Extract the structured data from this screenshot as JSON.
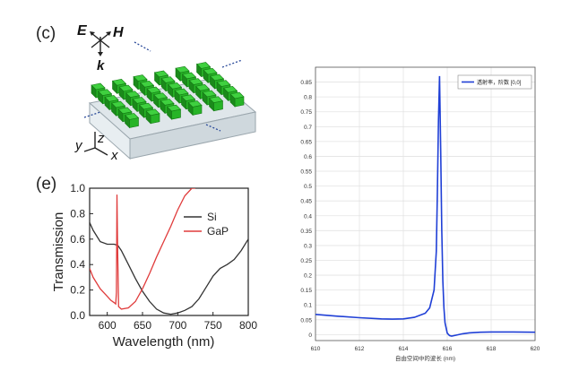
{
  "panel_c": {
    "label": "(c)",
    "axis_labels": {
      "E": "E",
      "H": "H",
      "k": "k",
      "x": "x",
      "y": "y",
      "z": "z"
    },
    "colors": {
      "pillar": "#27b427",
      "pillar_dark": "#1b8a1b",
      "substrate": "#dfe6ea"
    }
  },
  "panel_e": {
    "label": "(e)"
  },
  "chart_data": [
    {
      "type": "line",
      "title": "",
      "xlabel": "Wavelength (nm​)",
      "ylabel": "Transmission",
      "xlim": [
        575,
        800
      ],
      "ylim": [
        0,
        1.0
      ],
      "xticks": [
        "600",
        "650",
        "700",
        "750",
        "800"
      ],
      "yticks": [
        "0.0",
        "0.2",
        "0.4",
        "0.6",
        "0.8",
        "1.0"
      ],
      "legend_position": "top-right",
      "grid": false,
      "series": [
        {
          "name": "Si",
          "color": "#333333",
          "x": [
            575,
            580,
            590,
            600,
            605,
            610,
            615,
            620,
            630,
            640,
            650,
            660,
            670,
            680,
            690,
            700,
            710,
            720,
            730,
            740,
            750,
            760,
            770,
            780,
            790,
            800
          ],
          "y": [
            0.73,
            0.67,
            0.58,
            0.56,
            0.56,
            0.56,
            0.55,
            0.51,
            0.4,
            0.29,
            0.19,
            0.11,
            0.05,
            0.02,
            0.01,
            0.02,
            0.04,
            0.07,
            0.13,
            0.22,
            0.31,
            0.37,
            0.4,
            0.44,
            0.51,
            0.6
          ]
        },
        {
          "name": "GaP",
          "color": "#e03c3c",
          "x": [
            575,
            580,
            590,
            600,
            605,
            610,
            612,
            613,
            613.8,
            614.5,
            616,
            620,
            630,
            640,
            650,
            660,
            670,
            680,
            690,
            700,
            710,
            720,
            725
          ],
          "y": [
            0.37,
            0.3,
            0.21,
            0.15,
            0.12,
            0.1,
            0.09,
            0.18,
            0.95,
            0.6,
            0.07,
            0.05,
            0.06,
            0.11,
            0.21,
            0.33,
            0.46,
            0.58,
            0.7,
            0.83,
            0.94,
            1.0,
            1.0
          ]
        }
      ]
    },
    {
      "type": "line",
      "title": "",
      "xlabel": "自由空间中的波长 (nm)",
      "ylabel": "",
      "xlim": [
        610,
        620
      ],
      "ylim": [
        -0.02,
        0.9
      ],
      "xticks": [
        "610",
        "612",
        "614",
        "616",
        "618",
        "620"
      ],
      "yticks": [
        "0",
        "0.05",
        "0.1",
        "0.15",
        "0.2",
        "0.25",
        "0.3",
        "0.35",
        "0.4",
        "0.45",
        "0.5",
        "0.55",
        "0.6",
        "0.65",
        "0.7",
        "0.75",
        "0.8",
        "0.85"
      ],
      "legend_position": "top-right",
      "grid": true,
      "series": [
        {
          "name": "透射率，阶数 [0,0]",
          "color": "#1f3fd6",
          "x": [
            610,
            611,
            612,
            613,
            613.5,
            614,
            614.5,
            615,
            615.2,
            615.4,
            615.5,
            615.55,
            615.6,
            615.65,
            615.7,
            615.75,
            615.8,
            615.85,
            615.9,
            616,
            616.1,
            616.2,
            616.4,
            616.7,
            617,
            617.5,
            618,
            619,
            620
          ],
          "y": [
            0.068,
            0.062,
            0.057,
            0.053,
            0.052,
            0.053,
            0.058,
            0.072,
            0.09,
            0.15,
            0.28,
            0.48,
            0.72,
            0.87,
            0.62,
            0.35,
            0.18,
            0.09,
            0.04,
            0.005,
            -0.003,
            -0.005,
            -0.002,
            0.003,
            0.006,
            0.008,
            0.009,
            0.009,
            0.008
          ]
        }
      ]
    }
  ]
}
